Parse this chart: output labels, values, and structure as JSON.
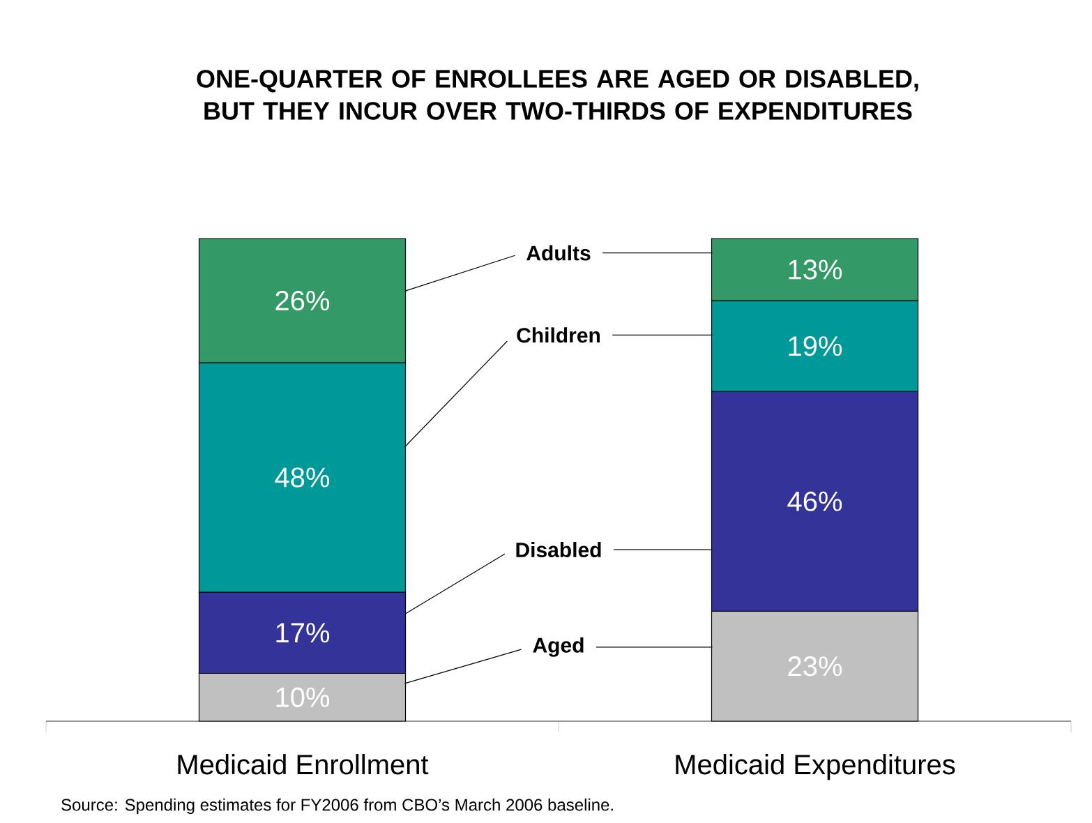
{
  "chart_data": {
    "type": "bar",
    "stacked": true,
    "title": "ONE-QUARTER OF ENROLLEES ARE AGED OR DISABLED, BUT THEY INCUR OVER TWO-THIRDS OF EXPENDITURES",
    "categories": [
      "Medicaid Enrollment",
      "Medicaid Expenditures"
    ],
    "series": [
      {
        "name": "Aged",
        "color": "#c0c0c0",
        "values": [
          10,
          23
        ],
        "value_labels": [
          "10%",
          "23%"
        ]
      },
      {
        "name": "Disabled",
        "color": "#333399",
        "values": [
          17,
          46
        ],
        "value_labels": [
          "17%",
          "46%"
        ]
      },
      {
        "name": "Children",
        "color": "#009999",
        "values": [
          48,
          19
        ],
        "value_labels": [
          "48%",
          "19%"
        ]
      },
      {
        "name": "Adults",
        "color": "#339966",
        "values": [
          26,
          13
        ],
        "value_labels": [
          "26%",
          "13%"
        ]
      }
    ],
    "ylim": [
      0,
      101
    ],
    "legend": "center",
    "annotations": [
      "Source:  Spending estimates for FY2006 from CBO’s March 2006 baseline."
    ]
  }
}
